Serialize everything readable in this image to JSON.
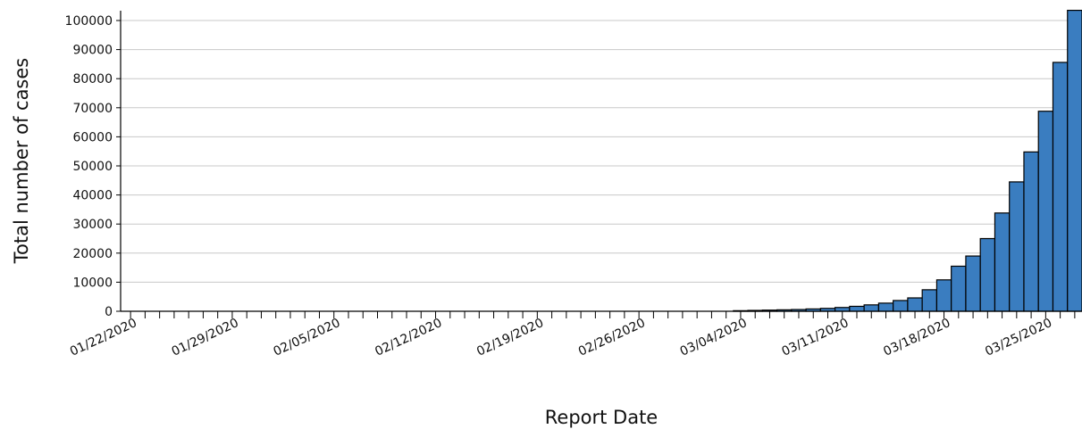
{
  "chart_data": {
    "type": "bar",
    "xlabel": "Report Date",
    "ylabel": "Total number of cases",
    "ylim": [
      0,
      104000
    ],
    "y_ticks": [
      0,
      10000,
      20000,
      30000,
      40000,
      50000,
      60000,
      70000,
      80000,
      90000,
      100000
    ],
    "x_tick_labels": [
      "01/22/2020",
      "01/29/2020",
      "02/05/2020",
      "02/12/2020",
      "02/19/2020",
      "02/26/2020",
      "03/04/2020",
      "03/11/2020",
      "03/18/2020",
      "03/25/2020"
    ],
    "grid": true,
    "bar_color": "#3a7dc0",
    "categories": [
      "01/22/2020",
      "01/23/2020",
      "01/24/2020",
      "01/25/2020",
      "01/26/2020",
      "01/27/2020",
      "01/28/2020",
      "01/29/2020",
      "01/30/2020",
      "01/31/2020",
      "02/01/2020",
      "02/02/2020",
      "02/03/2020",
      "02/04/2020",
      "02/05/2020",
      "02/06/2020",
      "02/07/2020",
      "02/08/2020",
      "02/09/2020",
      "02/10/2020",
      "02/11/2020",
      "02/12/2020",
      "02/13/2020",
      "02/14/2020",
      "02/15/2020",
      "02/16/2020",
      "02/17/2020",
      "02/18/2020",
      "02/19/2020",
      "02/20/2020",
      "02/21/2020",
      "02/22/2020",
      "02/23/2020",
      "02/24/2020",
      "02/25/2020",
      "02/26/2020",
      "02/27/2020",
      "02/28/2020",
      "02/29/2020",
      "03/01/2020",
      "03/02/2020",
      "03/03/2020",
      "03/04/2020",
      "03/05/2020",
      "03/06/2020",
      "03/07/2020",
      "03/08/2020",
      "03/09/2020",
      "03/10/2020",
      "03/11/2020",
      "03/12/2020",
      "03/13/2020",
      "03/14/2020",
      "03/15/2020",
      "03/16/2020",
      "03/17/2020",
      "03/18/2020",
      "03/19/2020",
      "03/20/2020",
      "03/21/2020",
      "03/22/2020",
      "03/23/2020",
      "03/24/2020",
      "03/25/2020",
      "03/26/2020",
      "03/27/2020"
    ],
    "values": [
      0,
      0,
      0,
      0,
      0,
      0,
      0,
      0,
      0,
      0,
      0,
      0,
      0,
      0,
      0,
      0,
      0,
      0,
      0,
      0,
      0,
      0,
      0,
      0,
      0,
      0,
      0,
      0,
      0,
      0,
      0,
      0,
      0,
      0,
      0,
      0,
      0,
      0,
      0,
      0,
      0,
      0,
      200,
      300,
      400,
      500,
      600,
      800,
      1000,
      1300,
      1700,
      2200,
      2800,
      3700,
      4600,
      7400,
      10800,
      15500,
      19000,
      25000,
      33800,
      44500,
      54800,
      68800,
      85600,
      103500
    ]
  }
}
